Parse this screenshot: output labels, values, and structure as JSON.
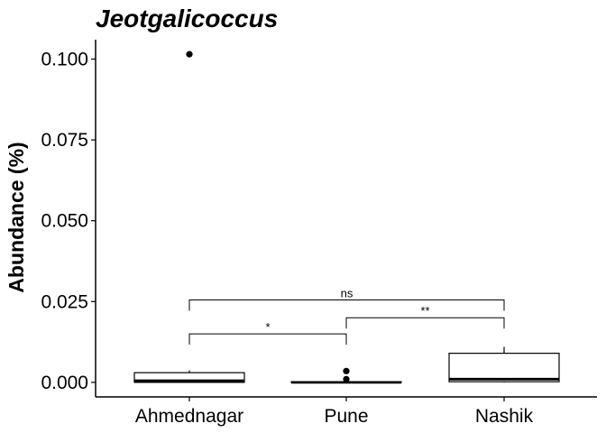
{
  "chart_data": {
    "type": "boxplot",
    "title": "Jeotgalicoccus",
    "xlabel": "",
    "ylabel": "Abundance (%)",
    "categories": [
      "Ahmednagar",
      "Pune",
      "Nashik"
    ],
    "ylim": [
      -0.0045,
      0.106
    ],
    "yticks": [
      0.0,
      0.025,
      0.05,
      0.075,
      0.1
    ],
    "ytick_labels": [
      "0.000",
      "0.025",
      "0.050",
      "0.075",
      "0.100"
    ],
    "boxes": [
      {
        "category": "Ahmednagar",
        "whisker_low": 0.0,
        "q1": 0.0,
        "median": 0.0005,
        "q3": 0.003,
        "whisker_high": 0.0037,
        "outliers": [
          0.1015
        ]
      },
      {
        "category": "Pune",
        "whisker_low": 0.0,
        "q1": 0.0,
        "median": 0.0,
        "q3": 0.0002,
        "whisker_high": 0.0003,
        "outliers": [
          0.0035,
          0.001
        ]
      },
      {
        "category": "Nashik",
        "whisker_low": 0.0,
        "q1": 0.0002,
        "median": 0.001,
        "q3": 0.009,
        "whisker_high": 0.011,
        "outliers": []
      }
    ],
    "comparisons": [
      {
        "from": "Ahmednagar",
        "to": "Pune",
        "y": 0.015,
        "label": "*"
      },
      {
        "from": "Pune",
        "to": "Nashik",
        "y": 0.02,
        "label": "**"
      },
      {
        "from": "Ahmednagar",
        "to": "Nashik",
        "y": 0.0255,
        "label": "ns"
      }
    ],
    "grid": false,
    "legend": "none"
  }
}
